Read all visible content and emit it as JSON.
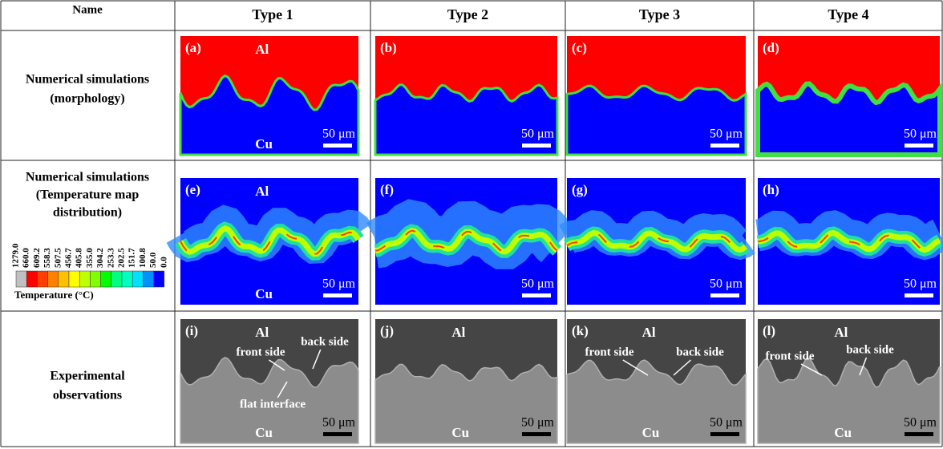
{
  "header": [
    "Name",
    "Type 1",
    "Type 2",
    "Type 3",
    "Type 4"
  ],
  "rows": [
    {
      "label": [
        "Numerical simulations",
        "(morphology)"
      ],
      "panels": [
        {
          "tag": "(a)",
          "top": "Al",
          "bottom": "Cu",
          "scale": "50 μm"
        },
        {
          "tag": "(b)",
          "scale": "50 μm"
        },
        {
          "tag": "(c)",
          "scale": "50 μm"
        },
        {
          "tag": "(d)",
          "scale": "50 μm"
        }
      ]
    },
    {
      "label": [
        "Numerical simulations",
        "(Temperature  map",
        "distribution)"
      ],
      "panels": [
        {
          "tag": "(e)",
          "top": "Al",
          "bottom": "Cu",
          "scale": "50 μm"
        },
        {
          "tag": "(f)",
          "scale": "50 μm"
        },
        {
          "tag": "(g)",
          "scale": "50 μm"
        },
        {
          "tag": "(h)",
          "scale": "50 μm"
        }
      ]
    },
    {
      "label": [
        "Experimental",
        "observations"
      ],
      "panels": [
        {
          "tag": "(i)",
          "top": "Al",
          "bottom": "Cu",
          "scale": "50 μm",
          "notes": [
            "front side",
            "back side",
            "flat interface"
          ]
        },
        {
          "tag": "(j)",
          "top": "Al",
          "bottom": "Cu",
          "scale": "50 μm"
        },
        {
          "tag": "(k)",
          "top": "Al",
          "bottom": "Cu",
          "scale": "50 μm",
          "notes": [
            "front side",
            "back side"
          ]
        },
        {
          "tag": "(l)",
          "top": "Al",
          "bottom": "Cu",
          "scale": "50 μm",
          "notes": [
            "front side",
            "back side"
          ]
        }
      ]
    }
  ],
  "colorbar": {
    "title": "Temperature (°C)",
    "labels": [
      "1279.0",
      "660.0",
      "609.2",
      "558.3",
      "507.5",
      "456.7",
      "405.8",
      "355.0",
      "304.2",
      "253.3",
      "202.5",
      "151.7",
      "100.8",
      "50.0",
      "0.0"
    ],
    "colors": [
      "#c0c0c0",
      "#ff0000",
      "#ff4000",
      "#ff8000",
      "#ffc000",
      "#ffff00",
      "#c0ff00",
      "#80ff00",
      "#00ff00",
      "#00ff80",
      "#00ffc0",
      "#00e0ff",
      "#0090ff",
      "#0000ff"
    ]
  }
}
